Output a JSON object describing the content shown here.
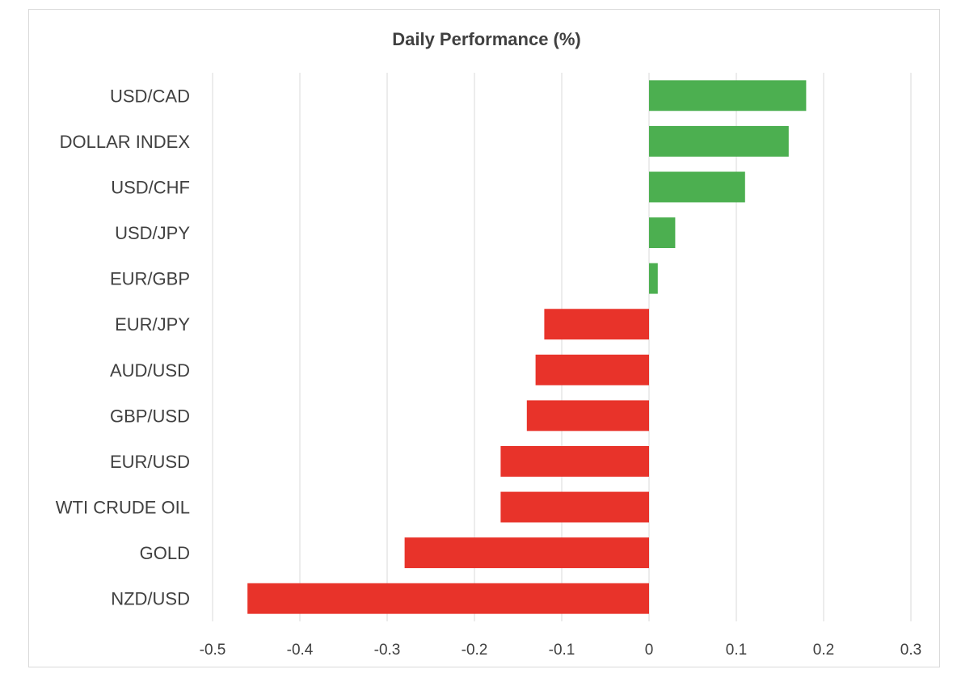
{
  "chart_data": {
    "type": "bar",
    "orientation": "horizontal",
    "title": "Daily Performance (%)",
    "xlabel": "",
    "ylabel": "",
    "categories": [
      "USD/CAD",
      "DOLLAR INDEX",
      "USD/CHF",
      "USD/JPY",
      "EUR/GBP",
      "EUR/JPY",
      "AUD/USD",
      "GBP/USD",
      "EUR/USD",
      "WTI CRUDE OIL",
      "GOLD",
      "NZD/USD"
    ],
    "values": [
      0.18,
      0.16,
      0.11,
      0.03,
      0.01,
      -0.12,
      -0.13,
      -0.14,
      -0.17,
      -0.17,
      -0.28,
      -0.46
    ],
    "xlim": [
      -0.5,
      0.3
    ],
    "xticks": [
      -0.5,
      -0.4,
      -0.3,
      -0.2,
      -0.1,
      0,
      0.1,
      0.2,
      0.3
    ],
    "xtick_labels": [
      "-0.5",
      "-0.4",
      "-0.3",
      "-0.2",
      "-0.1",
      "0",
      "0.1",
      "0.2",
      "0.3"
    ],
    "grid": "vertical",
    "legend": "none",
    "colors": {
      "positive": "#4caf50",
      "negative": "#e8332a",
      "grid": "#d9d9d9",
      "text": "#404040"
    }
  }
}
